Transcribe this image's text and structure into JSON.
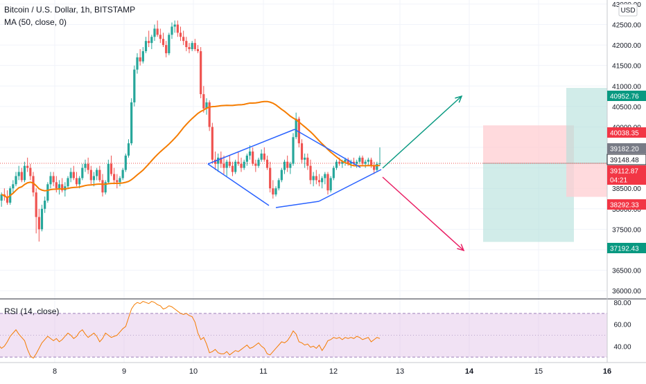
{
  "chart_title": "Bitcoin / U.S. Dollar, 1h, BITSTAMP",
  "indicators": {
    "ma": "MA (50, close, 0)",
    "rsi": "RSI (14, close)"
  },
  "currency_button": "USD",
  "colors": {
    "up": "#26a69a",
    "down": "#ef5350",
    "ma": "#f57c00",
    "rsi_line": "#f57c00",
    "pattern": "#2962ff",
    "arrow_up": "#089981",
    "arrow_down": "#e91e63",
    "target_fill": "#b2dfdb",
    "stop_fill": "#ffcdd2",
    "rsi_band": "#e1bee7"
  },
  "chart_data": [
    {
      "type": "candlestick",
      "title": "Bitcoin / U.S. Dollar, 1h, BITSTAMP",
      "x_tick_labels": [
        "8",
        "9",
        "10",
        "11",
        "12",
        "13",
        "14",
        "15",
        "16"
      ],
      "ylim": [
        35800,
        43100
      ],
      "y_tick_labels": [
        "36000.00",
        "36500.00",
        "37000.00",
        "37500.00",
        "38000.00",
        "38500.00",
        "39000.00",
        "39500.00",
        "40000.00",
        "40500.00",
        "41000.00",
        "41500.00",
        "42000.00",
        "42500.00",
        "43000.00"
      ],
      "price_labels": [
        {
          "text": "40952.76",
          "kind": "green"
        },
        {
          "text": "40038.35",
          "kind": "red"
        },
        {
          "text": "39182.20",
          "kind": "gray"
        },
        {
          "text": "39148.48",
          "kind": "outline"
        },
        {
          "text": "39112.87",
          "kind": "red"
        },
        {
          "text": "04:21",
          "kind": "red"
        },
        {
          "text": "38292.33",
          "kind": "red"
        },
        {
          "text": "37192.43",
          "kind": "green"
        }
      ],
      "current_price": 39112.87,
      "ma_period": 50,
      "candles": [
        [
          38200,
          38400,
          38050,
          38350
        ],
        [
          38350,
          38500,
          38200,
          38300
        ],
        [
          38300,
          38450,
          38100,
          38150
        ],
        [
          38150,
          38550,
          38100,
          38500
        ],
        [
          38500,
          38700,
          38400,
          38600
        ],
        [
          38600,
          38900,
          38550,
          38800
        ],
        [
          38800,
          39050,
          38700,
          38900
        ],
        [
          38900,
          39000,
          38650,
          38700
        ],
        [
          38700,
          39150,
          38650,
          39050
        ],
        [
          39050,
          39250,
          38900,
          39000
        ],
        [
          39000,
          39100,
          38700,
          38800
        ],
        [
          38800,
          38900,
          38300,
          38400
        ],
        [
          38400,
          38500,
          37400,
          37800
        ],
        [
          37800,
          38000,
          37200,
          37500
        ],
        [
          37500,
          38100,
          37450,
          38000
        ],
        [
          38000,
          38300,
          37900,
          38200
        ],
        [
          38200,
          38650,
          38150,
          38600
        ],
        [
          38600,
          38900,
          38500,
          38800
        ],
        [
          38800,
          38900,
          38550,
          38650
        ],
        [
          38650,
          38800,
          38400,
          38500
        ],
        [
          38500,
          38700,
          38350,
          38600
        ],
        [
          38600,
          38750,
          38400,
          38450
        ],
        [
          38450,
          38650,
          38300,
          38550
        ],
        [
          38550,
          38800,
          38500,
          38750
        ],
        [
          38750,
          39000,
          38650,
          38900
        ],
        [
          38900,
          39050,
          38700,
          38750
        ],
        [
          38750,
          38900,
          38550,
          38600
        ],
        [
          38600,
          38800,
          38500,
          38750
        ],
        [
          38750,
          39100,
          38700,
          39000
        ],
        [
          39000,
          39200,
          38900,
          39100
        ],
        [
          39100,
          39250,
          38850,
          38950
        ],
        [
          38950,
          39050,
          38600,
          38700
        ],
        [
          38700,
          38900,
          38550,
          38800
        ],
        [
          38800,
          39000,
          38700,
          38950
        ],
        [
          38950,
          39050,
          38650,
          38700
        ],
        [
          38700,
          38850,
          38300,
          38400
        ],
        [
          38400,
          38700,
          38350,
          38650
        ],
        [
          38650,
          39200,
          38600,
          39100
        ],
        [
          39100,
          39300,
          38800,
          38850
        ],
        [
          38850,
          39000,
          38600,
          38700
        ],
        [
          38700,
          38850,
          38500,
          38650
        ],
        [
          38650,
          38800,
          38550,
          38750
        ],
        [
          38750,
          39000,
          38700,
          38950
        ],
        [
          38950,
          39350,
          38900,
          39300
        ],
        [
          39300,
          39700,
          39250,
          39600
        ],
        [
          39600,
          40700,
          39550,
          40600
        ],
        [
          40600,
          41500,
          40500,
          41400
        ],
        [
          41400,
          41800,
          41300,
          41700
        ],
        [
          41700,
          41900,
          41500,
          41600
        ],
        [
          41600,
          41950,
          41550,
          41850
        ],
        [
          41850,
          42200,
          41800,
          42100
        ],
        [
          42100,
          42350,
          41950,
          42050
        ],
        [
          42050,
          42250,
          41900,
          42200
        ],
        [
          42200,
          42500,
          42100,
          42400
        ],
        [
          42400,
          42600,
          42200,
          42250
        ],
        [
          42250,
          42400,
          42050,
          42150
        ],
        [
          42150,
          42300,
          41950,
          42000
        ],
        [
          42000,
          42100,
          41700,
          41800
        ],
        [
          41800,
          42300,
          41750,
          42250
        ],
        [
          42250,
          42550,
          42150,
          42450
        ],
        [
          42450,
          42600,
          42300,
          42500
        ],
        [
          42500,
          42600,
          42200,
          42300
        ],
        [
          42300,
          42450,
          42100,
          42200
        ],
        [
          42200,
          42350,
          42000,
          42100
        ],
        [
          42100,
          42200,
          41850,
          41950
        ],
        [
          41950,
          42050,
          41800,
          41900
        ],
        [
          41900,
          42100,
          41850,
          42050
        ],
        [
          42050,
          42150,
          41850,
          41900
        ],
        [
          41900,
          42000,
          41800,
          41850
        ],
        [
          41850,
          41950,
          40700,
          40800
        ],
        [
          40800,
          41000,
          40350,
          40450
        ],
        [
          40450,
          40700,
          40300,
          40600
        ],
        [
          40600,
          40650,
          39900,
          40000
        ],
        [
          40000,
          40100,
          39100,
          39200
        ],
        [
          39200,
          39400,
          38950,
          39100
        ],
        [
          39100,
          39350,
          38900,
          39250
        ],
        [
          39250,
          39400,
          39000,
          39100
        ],
        [
          39100,
          39300,
          38850,
          39000
        ],
        [
          39000,
          39200,
          38800,
          39150
        ],
        [
          39150,
          39300,
          39000,
          39050
        ],
        [
          39050,
          39150,
          38800,
          38900
        ],
        [
          38900,
          39200,
          38850,
          39150
        ],
        [
          39150,
          39400,
          39050,
          39100
        ],
        [
          39100,
          39250,
          38900,
          39000
        ],
        [
          39000,
          39200,
          38950,
          39150
        ],
        [
          39150,
          39350,
          39050,
          39300
        ],
        [
          39300,
          39550,
          39200,
          39400
        ],
        [
          39400,
          39500,
          39050,
          39100
        ],
        [
          39100,
          39200,
          38900,
          39050
        ],
        [
          39050,
          39250,
          39000,
          39200
        ],
        [
          39200,
          39450,
          39150,
          39350
        ],
        [
          39350,
          39500,
          39150,
          39200
        ],
        [
          39200,
          39300,
          38950,
          39000
        ],
        [
          39000,
          39150,
          38400,
          38500
        ],
        [
          38500,
          38700,
          38250,
          38350
        ],
        [
          38350,
          38550,
          38300,
          38500
        ],
        [
          38500,
          38750,
          38450,
          38700
        ],
        [
          38700,
          39000,
          38650,
          38950
        ],
        [
          38950,
          39200,
          38850,
          39150
        ],
        [
          39150,
          39300,
          38900,
          39000
        ],
        [
          39000,
          39150,
          38850,
          39100
        ],
        [
          39100,
          39850,
          39050,
          39750
        ],
        [
          39750,
          40350,
          39700,
          40200
        ],
        [
          40200,
          40250,
          39500,
          39600
        ],
        [
          39600,
          39700,
          39100,
          39200
        ],
        [
          39200,
          39350,
          39000,
          39250
        ],
        [
          39250,
          39350,
          38950,
          39050
        ],
        [
          39050,
          39200,
          38600,
          38700
        ],
        [
          38700,
          38900,
          38550,
          38800
        ],
        [
          38800,
          38950,
          38600,
          38700
        ],
        [
          38700,
          38850,
          38550,
          38650
        ],
        [
          38650,
          38800,
          38500,
          38750
        ],
        [
          38750,
          38900,
          38600,
          38850
        ],
        [
          38850,
          38900,
          38350,
          38450
        ],
        [
          38450,
          38800,
          38400,
          38750
        ],
        [
          38750,
          39050,
          38700,
          39000
        ],
        [
          39000,
          39200,
          38950,
          39150
        ],
        [
          39150,
          39250,
          39050,
          39100
        ],
        [
          39100,
          39200,
          39000,
          39150
        ],
        [
          39150,
          39250,
          39050,
          39200
        ],
        [
          39200,
          39250,
          39050,
          39100
        ],
        [
          39100,
          39200,
          39000,
          39150
        ],
        [
          39150,
          39250,
          39050,
          39100
        ],
        [
          39100,
          39200,
          39000,
          39150
        ],
        [
          39150,
          39300,
          39100,
          39250
        ],
        [
          39250,
          39300,
          39050,
          39100
        ],
        [
          39100,
          39200,
          39000,
          39150
        ],
        [
          39150,
          39250,
          39050,
          39200
        ],
        [
          39200,
          39250,
          39000,
          39050
        ],
        [
          39050,
          39150,
          38850,
          38950
        ],
        [
          38950,
          39150,
          38900,
          39100
        ],
        [
          39100,
          39500,
          39050,
          39112.87
        ]
      ]
    },
    {
      "type": "line",
      "title": "RSI (14, close)",
      "ylim": [
        25,
        82
      ],
      "y_tick_labels": [
        "80.00",
        "60.00",
        "40.00"
      ],
      "bands": [
        70,
        30
      ],
      "values": [
        41,
        38,
        40,
        44,
        49,
        52,
        55,
        51,
        48,
        45,
        37,
        31,
        29,
        33,
        38,
        43,
        46,
        49,
        47,
        45,
        47,
        44,
        46,
        49,
        52,
        50,
        47,
        49,
        53,
        55,
        51,
        48,
        50,
        52,
        49,
        44,
        47,
        52,
        50,
        48,
        49,
        50,
        53,
        56,
        58,
        66,
        74,
        78,
        80,
        79,
        81,
        80,
        79,
        81,
        80,
        78,
        77,
        74,
        75,
        77,
        76,
        74,
        72,
        70,
        69,
        70,
        68,
        67,
        62,
        52,
        46,
        48,
        42,
        34,
        35,
        37,
        34,
        33,
        33,
        35,
        32,
        34,
        36,
        35,
        37,
        39,
        41,
        38,
        39,
        41,
        43,
        40,
        38,
        33,
        32,
        35,
        38,
        41,
        44,
        43,
        45,
        49,
        54,
        51,
        44,
        43,
        41,
        42,
        39,
        40,
        38,
        41,
        36,
        40,
        45,
        46,
        48,
        47,
        48,
        46,
        48,
        47,
        48,
        47,
        49,
        48,
        46,
        47,
        48,
        44,
        46,
        48,
        47
      ]
    }
  ]
}
